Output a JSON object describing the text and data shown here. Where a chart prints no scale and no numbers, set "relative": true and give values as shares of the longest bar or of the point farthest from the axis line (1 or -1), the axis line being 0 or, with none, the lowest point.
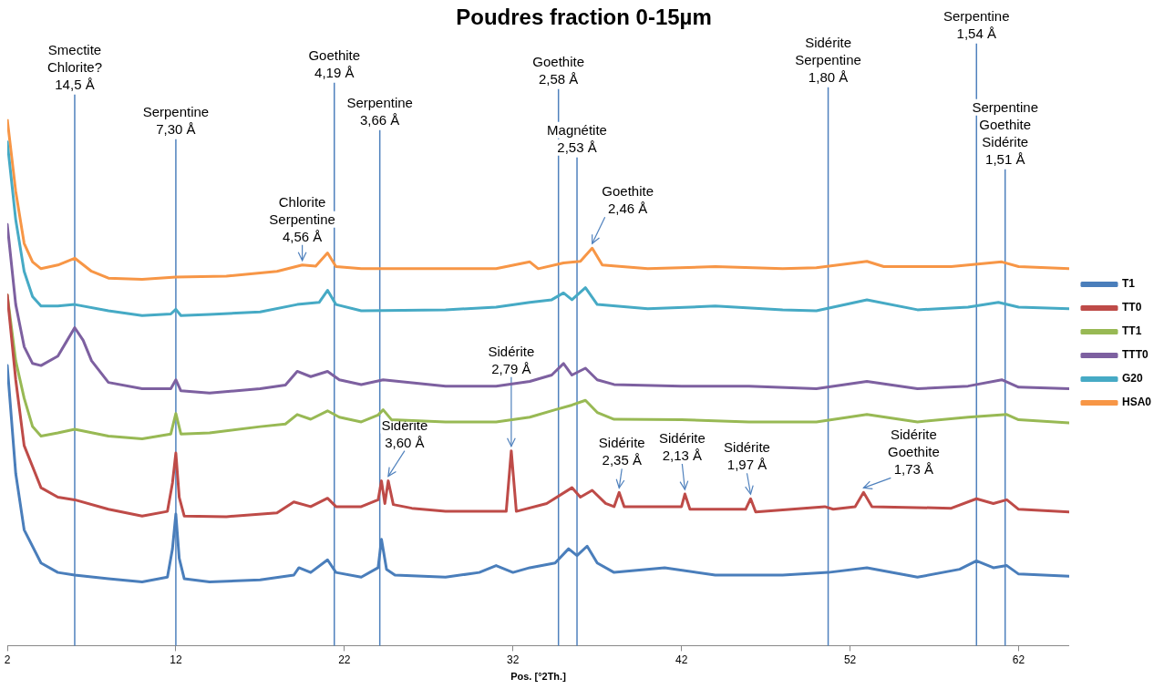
{
  "chart_data": {
    "type": "line",
    "title": "Poudres fraction 0-15µm",
    "xlabel": "Pos. [°2Th.]",
    "relative": true,
    "xlim": [
      2,
      65
    ],
    "xticks": [
      2,
      12,
      22,
      32,
      42,
      52,
      62
    ],
    "grid": false,
    "legend": "right",
    "marker": "none",
    "line_style": "solid",
    "series": [
      {
        "name": "T1",
        "color": "#4a7ebb",
        "x": [
          2,
          2.5,
          3,
          4,
          5,
          6,
          8,
          10,
          11.5,
          11.8,
          12,
          12.2,
          12.5,
          14,
          17,
          19,
          19.3,
          20,
          21,
          21.5,
          23,
          24,
          24.2,
          24.5,
          25,
          28,
          30,
          31,
          32,
          33,
          34.5,
          35.3,
          35.8,
          36.4,
          37,
          38,
          41,
          44,
          48,
          50.7,
          53,
          56,
          58.5,
          59.5,
          60.5,
          61.3,
          62,
          65
        ],
        "values": [
          0.532,
          0.327,
          0.22,
          0.157,
          0.139,
          0.134,
          0.127,
          0.121,
          0.13,
          0.184,
          0.25,
          0.166,
          0.127,
          0.121,
          0.125,
          0.134,
          0.148,
          0.139,
          0.163,
          0.139,
          0.13,
          0.148,
          0.202,
          0.145,
          0.134,
          0.13,
          0.139,
          0.152,
          0.139,
          0.148,
          0.157,
          0.184,
          0.171,
          0.189,
          0.157,
          0.139,
          0.148,
          0.134,
          0.134,
          0.139,
          0.148,
          0.13,
          0.145,
          0.161,
          0.148,
          0.152,
          0.136,
          0.132
        ]
      },
      {
        "name": "TT0",
        "color": "#be4b48",
        "x": [
          2,
          2.5,
          3,
          4,
          5,
          6,
          8,
          10,
          11.5,
          11.8,
          12,
          12.2,
          12.5,
          15,
          18,
          19,
          20,
          21,
          21.5,
          23,
          24,
          24.2,
          24.4,
          24.6,
          24.9,
          26,
          28,
          31.6,
          31.9,
          32.2,
          34,
          35.5,
          36,
          36.7,
          37.5,
          38,
          38.3,
          38.6,
          42,
          42.2,
          42.5,
          45.8,
          46.1,
          46.4,
          50.5,
          51,
          52.3,
          52.8,
          53.3,
          58,
          59.5,
          60.5,
          61.3,
          62,
          65
        ],
        "values": [
          0.666,
          0.505,
          0.38,
          0.3,
          0.282,
          0.277,
          0.259,
          0.246,
          0.255,
          0.309,
          0.366,
          0.282,
          0.246,
          0.245,
          0.252,
          0.273,
          0.264,
          0.28,
          0.264,
          0.264,
          0.277,
          0.313,
          0.27,
          0.313,
          0.268,
          0.261,
          0.255,
          0.255,
          0.37,
          0.255,
          0.27,
          0.3,
          0.282,
          0.295,
          0.27,
          0.264,
          0.291,
          0.264,
          0.264,
          0.288,
          0.259,
          0.259,
          0.279,
          0.254,
          0.264,
          0.259,
          0.264,
          0.291,
          0.264,
          0.261,
          0.279,
          0.27,
          0.277,
          0.259,
          0.254
        ]
      },
      {
        "name": "TT1",
        "color": "#98b954",
        "x": [
          2,
          2.5,
          3,
          3.5,
          4,
          5,
          6,
          8,
          10,
          11.7,
          12,
          12.3,
          14,
          17,
          18.5,
          19.2,
          20,
          21,
          21.7,
          23,
          24,
          24.3,
          24.8,
          28,
          31,
          33,
          34.5,
          35.5,
          36.3,
          37,
          38,
          42,
          46,
          50,
          53,
          56,
          59,
          61.3,
          62,
          65
        ],
        "values": [
          0.666,
          0.541,
          0.47,
          0.416,
          0.398,
          0.404,
          0.411,
          0.398,
          0.393,
          0.402,
          0.441,
          0.402,
          0.404,
          0.416,
          0.421,
          0.439,
          0.43,
          0.446,
          0.434,
          0.425,
          0.438,
          0.448,
          0.429,
          0.425,
          0.425,
          0.434,
          0.448,
          0.457,
          0.466,
          0.443,
          0.43,
          0.429,
          0.425,
          0.425,
          0.439,
          0.425,
          0.434,
          0.439,
          0.429,
          0.423
        ]
      },
      {
        "name": "TTT0",
        "color": "#7d60a0",
        "x": [
          2,
          2.5,
          3,
          3.5,
          4,
          5,
          5.5,
          6,
          6.5,
          7,
          8,
          10,
          11.7,
          12,
          12.3,
          14,
          17,
          18.5,
          19.2,
          20,
          21,
          21.7,
          23,
          24.3,
          28,
          31,
          33,
          34.3,
          35,
          35.5,
          36.3,
          37,
          38,
          42,
          46,
          50,
          53,
          56,
          59,
          61,
          62,
          65
        ],
        "values": [
          0.8,
          0.648,
          0.568,
          0.536,
          0.532,
          0.55,
          0.577,
          0.604,
          0.58,
          0.541,
          0.5,
          0.488,
          0.488,
          0.505,
          0.484,
          0.48,
          0.488,
          0.495,
          0.521,
          0.511,
          0.521,
          0.505,
          0.496,
          0.505,
          0.493,
          0.493,
          0.502,
          0.514,
          0.536,
          0.514,
          0.527,
          0.505,
          0.496,
          0.493,
          0.493,
          0.488,
          0.502,
          0.488,
          0.493,
          0.505,
          0.491,
          0.488
        ]
      },
      {
        "name": "G20",
        "color": "#46aac5",
        "x": [
          2,
          2.5,
          3,
          3.5,
          4,
          5,
          6,
          8,
          10,
          11.7,
          12,
          12.3,
          14,
          17,
          19.2,
          20.5,
          21,
          21.5,
          23,
          28,
          31,
          33,
          34.3,
          35,
          35.5,
          36.3,
          37,
          40,
          44,
          48,
          50,
          53,
          56,
          59,
          60.8,
          62,
          65
        ],
        "values": [
          0.957,
          0.809,
          0.711,
          0.663,
          0.645,
          0.645,
          0.648,
          0.636,
          0.627,
          0.63,
          0.639,
          0.627,
          0.629,
          0.634,
          0.648,
          0.652,
          0.675,
          0.648,
          0.636,
          0.638,
          0.643,
          0.652,
          0.657,
          0.67,
          0.657,
          0.68,
          0.648,
          0.64,
          0.645,
          0.638,
          0.636,
          0.657,
          0.638,
          0.643,
          0.652,
          0.643,
          0.64
        ]
      },
      {
        "name": "HSA0",
        "color": "#f79646",
        "x": [
          2,
          2.5,
          3,
          3.5,
          4,
          5,
          6,
          7,
          8,
          10,
          12,
          15,
          18,
          19.5,
          20.3,
          21,
          21.5,
          23,
          28,
          31,
          33,
          33.5,
          35,
          36,
          36.7,
          37.3,
          40,
          44,
          48,
          50,
          53,
          54,
          58,
          61,
          62,
          65
        ],
        "values": [
          1,
          0.863,
          0.764,
          0.729,
          0.716,
          0.723,
          0.736,
          0.711,
          0.698,
          0.696,
          0.7,
          0.702,
          0.711,
          0.723,
          0.721,
          0.746,
          0.72,
          0.716,
          0.716,
          0.716,
          0.729,
          0.716,
          0.727,
          0.73,
          0.755,
          0.723,
          0.716,
          0.72,
          0.716,
          0.718,
          0.73,
          0.72,
          0.72,
          0.729,
          0.72,
          0.716
        ]
      }
    ],
    "ref_lines": [
      {
        "axis": "x",
        "value": 6.0,
        "label": "Smectite\nChlorite?\n14,5 Å",
        "color": "#4f81bd"
      },
      {
        "axis": "x",
        "value": 12.0,
        "label": "Serpentine\n7,30 Å",
        "color": "#4f81bd"
      },
      {
        "axis": "x",
        "value": 21.4,
        "label": "Goethite\n4,19 Å",
        "color": "#4f81bd"
      },
      {
        "axis": "x",
        "value": 24.1,
        "label": "Serpentine\n3,66 Å",
        "color": "#4f81bd"
      },
      {
        "axis": "x",
        "value": 34.7,
        "label": "Goethite\n2,58 Å",
        "color": "#4f81bd"
      },
      {
        "axis": "x",
        "value": 35.8,
        "label": "Magnétite\n2,53 Å",
        "color": "#4f81bd"
      },
      {
        "axis": "x",
        "value": 50.7,
        "label": "Sidérite\nSerpentine\n1,80 Å",
        "color": "#4f81bd"
      },
      {
        "axis": "x",
        "value": 59.5,
        "label": "Serpentine\n1,54 Å",
        "color": "#4f81bd"
      },
      {
        "axis": "x",
        "value": 61.2,
        "label": "Serpentine\nGoethite\nSidérite\n1,51 Å",
        "color": "#4f81bd"
      }
    ],
    "annotations": [
      {
        "text": "Chlorite\nSerpentine\n4,56 Å",
        "x": 19.5,
        "y": 0.723
      },
      {
        "text": "Goethite\n2,46 Å",
        "x": 36.7,
        "y": 0.755
      },
      {
        "text": "Sidérite\n3,60 Å",
        "x": 24.6,
        "y": 0.313
      },
      {
        "text": "Sidérite\n2,79 Å",
        "x": 31.9,
        "y": 0.37
      },
      {
        "text": "Sidérite\n2,35 Å",
        "x": 38.3,
        "y": 0.291
      },
      {
        "text": "Sidérite\n2,13 Å",
        "x": 42.2,
        "y": 0.288
      },
      {
        "text": "Sidérite\n1,97 Å",
        "x": 46.1,
        "y": 0.279
      },
      {
        "text": "Sidérite\nGoethite\n1,73 Å",
        "x": 52.8,
        "y": 0.291
      }
    ]
  }
}
